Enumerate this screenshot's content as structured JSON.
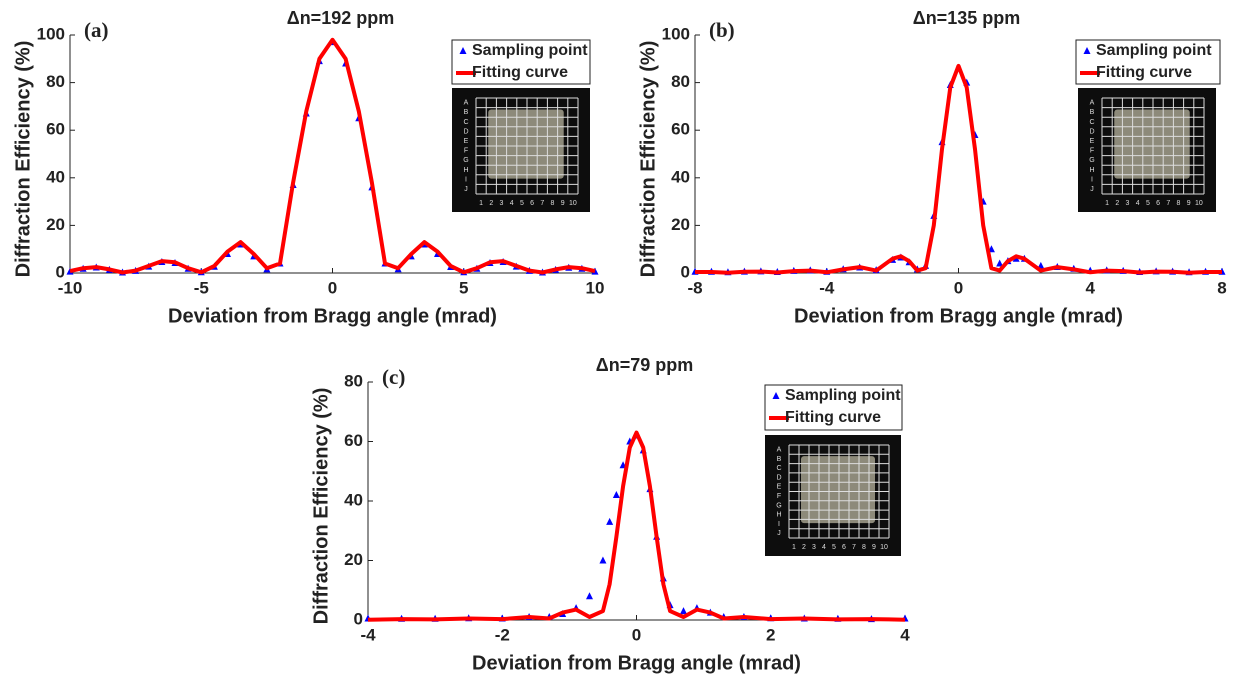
{
  "chart_data": [
    {
      "type": "line",
      "panel_label": "(a)",
      "title": "Δn=192 ppm",
      "xlabel": "Deviation from Bragg angle (mrad)",
      "ylabel": "Diffraction Efficiency (%)",
      "x": [
        -10,
        -9.5,
        -9,
        -8.5,
        -8,
        -7.5,
        -7,
        -6.5,
        -6,
        -5.5,
        -5,
        -4.5,
        -4,
        -3.5,
        -3,
        -2.5,
        -2,
        -1.5,
        -1,
        -0.5,
        0,
        0.5,
        1,
        1.5,
        2,
        2.5,
        3,
        3.5,
        4,
        4.5,
        5,
        5.5,
        6,
        6.5,
        7,
        7.5,
        8,
        8.5,
        9,
        9.5,
        10
      ],
      "series": [
        {
          "name": "Sampling point",
          "color": "#0000ff",
          "marker": "triangle",
          "line": false,
          "values": [
            0.6,
            1.8,
            2.3,
            1.3,
            0.2,
            0.9,
            2.7,
            4.6,
            4.2,
            1.8,
            0.3,
            2.6,
            8,
            12,
            7,
            1.5,
            4,
            37,
            67,
            89,
            97,
            88,
            65,
            36,
            4,
            1.6,
            7,
            12,
            8,
            2.5,
            0.3,
            1.8,
            4.2,
            4.6,
            2.7,
            0.9,
            0.2,
            1.3,
            2.2,
            1.8,
            0.6
          ]
        },
        {
          "name": "Fitting curve",
          "color": "#ff0000",
          "marker": "none",
          "line": true,
          "values": [
            0.8,
            2,
            2.5,
            1.5,
            0.2,
            1,
            3,
            5,
            4.5,
            2,
            0.3,
            3,
            9,
            13,
            8,
            2,
            4,
            38,
            68,
            90,
            98,
            90,
            68,
            38,
            4,
            2,
            8,
            13,
            9,
            3,
            0.3,
            2,
            4.5,
            5,
            3,
            1,
            0.2,
            1.5,
            2.5,
            2,
            0.8
          ]
        }
      ],
      "xlim": [
        -10,
        10
      ],
      "xticks": [
        -10,
        -5,
        0,
        5,
        10
      ],
      "ylim": [
        0,
        100
      ],
      "yticks": [
        0,
        20,
        40,
        60,
        80,
        100
      ],
      "legend": "upper right",
      "inset": {
        "rows": [
          "A",
          "B",
          "C",
          "D",
          "E",
          "F",
          "G",
          "H",
          "I",
          "J"
        ],
        "cols": [
          1,
          2,
          3,
          4,
          5,
          6,
          7,
          8,
          9,
          10
        ]
      }
    },
    {
      "type": "line",
      "panel_label": "(b)",
      "title": "Δn=135 ppm",
      "xlabel": "Deviation from Bragg angle (mrad)",
      "ylabel": "Diffraction Efficiency (%)",
      "x": [
        -8,
        -7.5,
        -7,
        -6.5,
        -6,
        -5.5,
        -5,
        -4.5,
        -4,
        -3.5,
        -3,
        -2.5,
        -2,
        -1.75,
        -1.5,
        -1.25,
        -1,
        -0.75,
        -0.5,
        -0.25,
        0,
        0.25,
        0.5,
        0.75,
        1,
        1.25,
        1.5,
        1.75,
        2,
        2.5,
        3,
        3.5,
        4,
        4.5,
        5,
        5.5,
        6,
        6.5,
        7,
        7.5,
        8
      ],
      "series": [
        {
          "name": "Sampling point",
          "color": "#0000ff",
          "marker": "triangle",
          "line": false,
          "values": [
            0.5,
            0.5,
            0.3,
            0.6,
            0.7,
            0.4,
            0.9,
            1.1,
            0.5,
            1.6,
            2.3,
            1.2,
            5.5,
            6.5,
            4.5,
            1.5,
            3,
            24,
            55,
            79,
            86,
            80,
            58,
            30,
            10,
            4,
            5,
            6,
            6,
            3,
            2.5,
            1.8,
            1,
            1.1,
            0.9,
            0.4,
            0.7,
            0.6,
            0.3,
            0.5,
            0.5
          ]
        },
        {
          "name": "Fitting curve",
          "color": "#ff0000",
          "marker": "none",
          "line": true,
          "values": [
            0.4,
            0.4,
            0.1,
            0.5,
            0.6,
            0.2,
            0.8,
            1,
            0.3,
            1.5,
            2.5,
            1,
            6,
            7,
            5,
            1,
            2,
            20,
            52,
            78,
            87,
            78,
            52,
            20,
            2,
            1,
            5,
            7,
            6,
            1,
            2.5,
            1.5,
            0.3,
            1,
            0.8,
            0.2,
            0.6,
            0.5,
            0.1,
            0.4,
            0.4
          ]
        }
      ],
      "xlim": [
        -8,
        8
      ],
      "xticks": [
        -8,
        -4,
        0,
        4,
        8
      ],
      "ylim": [
        0,
        100
      ],
      "yticks": [
        0,
        20,
        40,
        60,
        80,
        100
      ],
      "legend": "upper right",
      "inset": {
        "rows": [
          "A",
          "B",
          "C",
          "D",
          "E",
          "F",
          "G",
          "H",
          "I",
          "J"
        ],
        "cols": [
          1,
          2,
          3,
          4,
          5,
          6,
          7,
          8,
          9,
          10
        ]
      }
    },
    {
      "type": "line",
      "panel_label": "(c)",
      "title": "Δn=79 ppm",
      "xlabel": "Deviation from Bragg angle (mrad)",
      "ylabel": "Diffraction Efficiency (%)",
      "x": [
        -4,
        -3.5,
        -3,
        -2.5,
        -2,
        -1.6,
        -1.3,
        -1.1,
        -0.9,
        -0.7,
        -0.5,
        -0.4,
        -0.3,
        -0.2,
        -0.1,
        0,
        0.1,
        0.2,
        0.3,
        0.4,
        0.5,
        0.7,
        0.9,
        1.1,
        1.3,
        1.6,
        2,
        2.5,
        3,
        3.5,
        4
      ],
      "series": [
        {
          "name": "Sampling point",
          "color": "#0000ff",
          "marker": "triangle",
          "line": false,
          "values": [
            0.5,
            0.4,
            0.4,
            0.6,
            0.5,
            1,
            1,
            2,
            4,
            8,
            20,
            33,
            42,
            52,
            60,
            62,
            57,
            44,
            28,
            14,
            5,
            3,
            4,
            2.5,
            1,
            1,
            0.6,
            0.5,
            0.4,
            0.3,
            0.5
          ]
        },
        {
          "name": "Fitting curve",
          "color": "#ff0000",
          "marker": "none",
          "line": true,
          "values": [
            0.1,
            0.3,
            0.2,
            0.5,
            0.3,
            1,
            0.5,
            2.5,
            3.5,
            1,
            3,
            12,
            28,
            45,
            58,
            63,
            58,
            45,
            28,
            12,
            3,
            1,
            3.5,
            2.5,
            0.5,
            1,
            0.3,
            0.5,
            0.2,
            0.3,
            0.1
          ]
        }
      ],
      "xlim": [
        -4,
        4
      ],
      "xticks": [
        -4,
        -2,
        0,
        2,
        4
      ],
      "ylim": [
        0,
        80
      ],
      "yticks": [
        0,
        20,
        40,
        60,
        80
      ],
      "legend": "upper right",
      "inset": {
        "rows": [
          "A",
          "B",
          "C",
          "D",
          "E",
          "F",
          "G",
          "H",
          "I",
          "J"
        ],
        "cols": [
          1,
          2,
          3,
          4,
          5,
          6,
          7,
          8,
          9,
          10
        ]
      }
    }
  ]
}
